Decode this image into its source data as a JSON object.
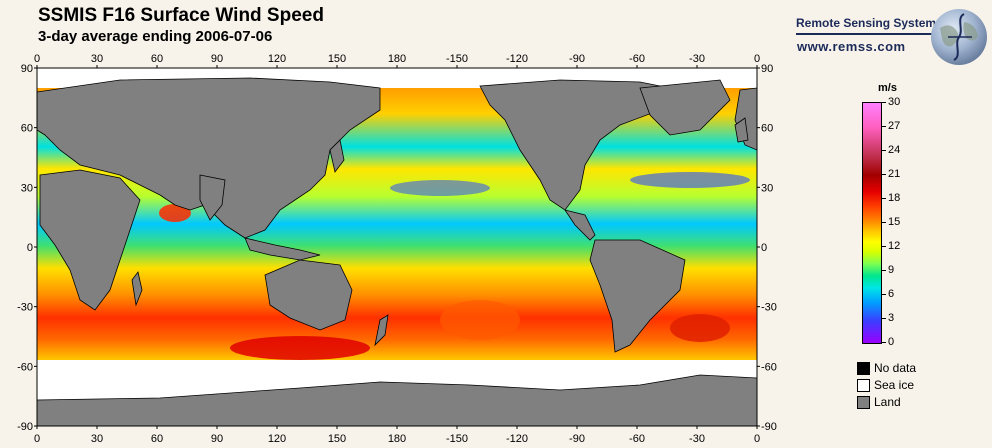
{
  "title": "SSMIS F16 Surface Wind Speed",
  "subtitle": "3-day average ending 2006-07-06",
  "brand": {
    "name": "Remote Sensing Systems",
    "url": "www.remss.com"
  },
  "map": {
    "projection": "equirectangular",
    "lon_labels": [
      "0",
      "30",
      "60",
      "90",
      "120",
      "150",
      "180",
      "-150",
      "-120",
      "-90",
      "-60",
      "-30",
      "0"
    ],
    "lat_labels": [
      "90",
      "60",
      "30",
      "0",
      "-30",
      "-60",
      "-90"
    ],
    "colors": {
      "land": "#808080",
      "sea_ice": "#ffffff",
      "no_data": "#000000",
      "background": "#f7f3ea"
    }
  },
  "colorbar": {
    "unit": "m/s",
    "range": [
      0,
      30
    ],
    "ticks": [
      "30",
      "27",
      "24",
      "21",
      "18",
      "15",
      "12",
      "9",
      "6",
      "3",
      "0"
    ]
  },
  "legend": [
    {
      "label": "No data",
      "color": "#000000"
    },
    {
      "label": "Sea ice",
      "color": "#ffffff"
    },
    {
      "label": "Land",
      "color": "#808080"
    }
  ]
}
